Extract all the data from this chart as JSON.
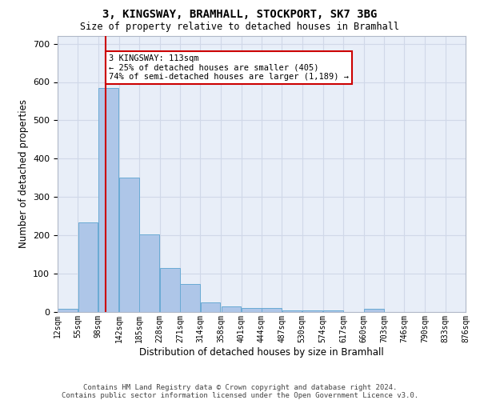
{
  "title1": "3, KINGSWAY, BRAMHALL, STOCKPORT, SK7 3BG",
  "title2": "Size of property relative to detached houses in Bramhall",
  "xlabel": "Distribution of detached houses by size in Bramhall",
  "ylabel": "Number of detached properties",
  "bin_edges": [
    12,
    55,
    98,
    142,
    185,
    228,
    271,
    314,
    358,
    401,
    444,
    487,
    530,
    574,
    617,
    660,
    703,
    746,
    790,
    833,
    876
  ],
  "counts": [
    8,
    234,
    584,
    350,
    203,
    115,
    73,
    25,
    15,
    10,
    10,
    5,
    5,
    5,
    0,
    8,
    0,
    0,
    0,
    0
  ],
  "bar_color": "#aec6e8",
  "bar_edge_color": "#6aaad4",
  "property_line_x": 113,
  "property_line_color": "#cc0000",
  "annotation_text": "3 KINGSWAY: 113sqm\n← 25% of detached houses are smaller (405)\n74% of semi-detached houses are larger (1,189) →",
  "annotation_box_color": "#ffffff",
  "annotation_box_edge_color": "#cc0000",
  "ylim": [
    0,
    720
  ],
  "yticks": [
    0,
    100,
    200,
    300,
    400,
    500,
    600,
    700
  ],
  "tick_labels": [
    "12sqm",
    "55sqm",
    "98sqm",
    "142sqm",
    "185sqm",
    "228sqm",
    "271sqm",
    "314sqm",
    "358sqm",
    "401sqm",
    "444sqm",
    "487sqm",
    "530sqm",
    "574sqm",
    "617sqm",
    "660sqm",
    "703sqm",
    "746sqm",
    "790sqm",
    "833sqm",
    "876sqm"
  ],
  "grid_color": "#d0d8e8",
  "background_color": "#e8eef8",
  "footer1": "Contains HM Land Registry data © Crown copyright and database right 2024.",
  "footer2": "Contains public sector information licensed under the Open Government Licence v3.0."
}
